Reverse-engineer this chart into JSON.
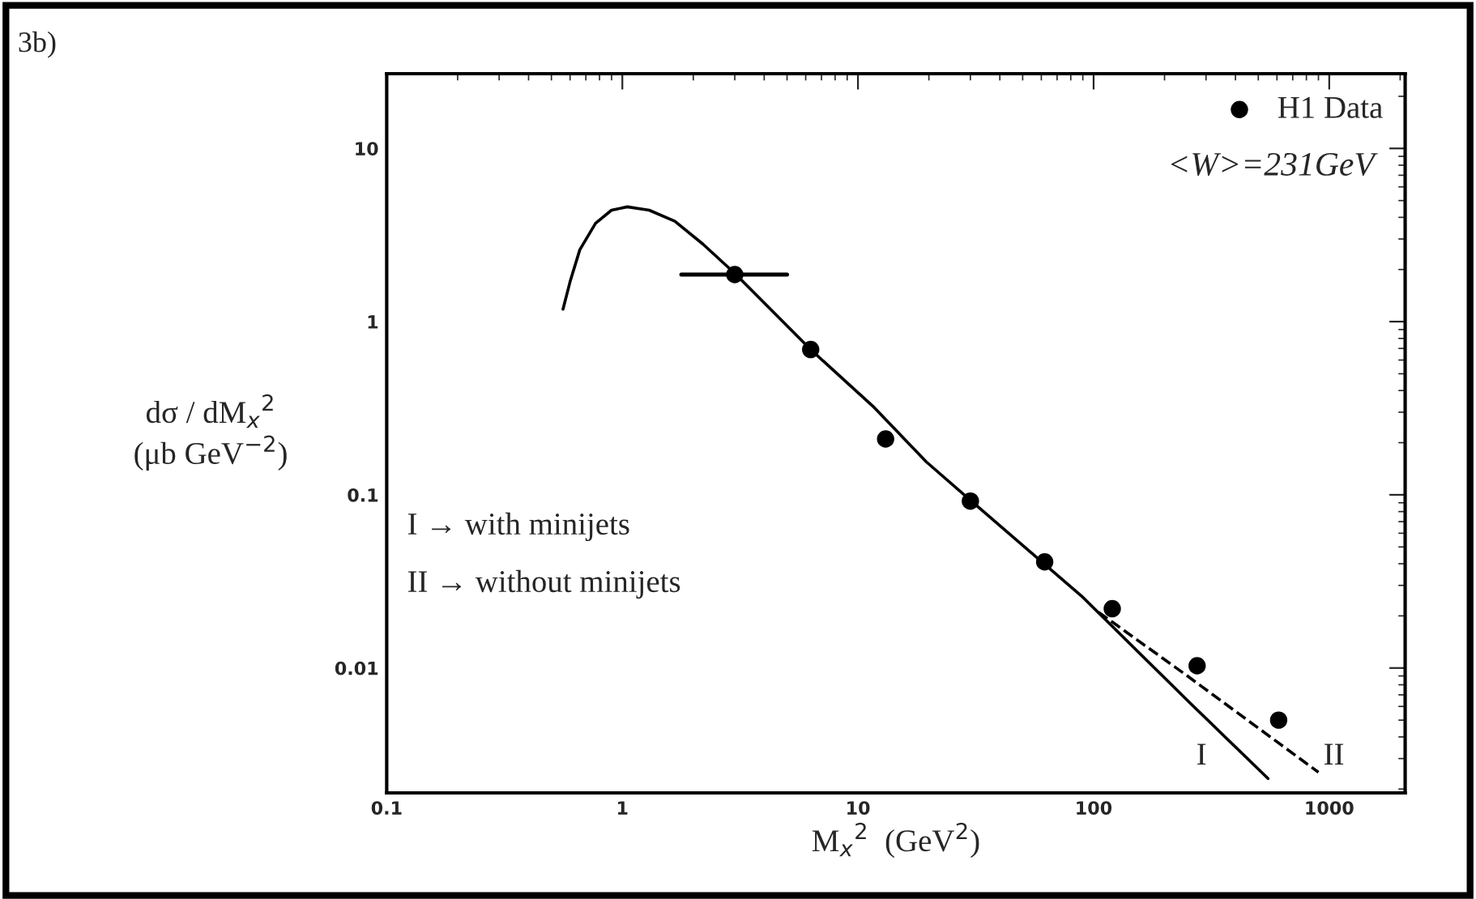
{
  "chart_data": {
    "type": "scatter",
    "title": "3b)",
    "xlabel": "M$_{x}$$^{2}$  (GeV$^{2}$)",
    "ylabel": "dσ / dM$_{x}$$^{2}$\n(μb GeV$^{−2}$)",
    "log": "xy",
    "xlim": [
      0.1,
      2100
    ],
    "ylim": [
      0.0019,
      27
    ],
    "xticks": [
      0.1,
      1,
      10,
      100,
      1000
    ],
    "yticks": [
      0.01,
      0.1,
      1,
      10
    ],
    "grid": false,
    "legend": "top right",
    "series": [
      {
        "type": "line",
        "color": "#000000",
        "line_style": "solid",
        "marker": "none",
        "x": [
          0.56,
          0.6,
          0.66,
          0.77,
          0.9,
          1.05,
          1.3,
          1.67,
          2.2,
          3.0,
          6.3,
          11.7,
          19.5,
          30,
          89,
          250,
          550
        ],
        "values": [
          1.18,
          1.7,
          2.6,
          3.7,
          4.4,
          4.6,
          4.4,
          3.8,
          2.8,
          1.9,
          0.69,
          0.32,
          0.155,
          0.093,
          0.026,
          0.0065,
          0.0023
        ]
      },
      {
        "type": "line",
        "color": "#000000",
        "line_style": "dashed",
        "marker": "none",
        "x": [
          105,
          250,
          900
        ],
        "values": [
          0.021,
          0.009,
          0.0025
        ]
      },
      {
        "name": "H1 Data",
        "color": "#000000",
        "marker": "circle",
        "x": [
          3.0,
          6.3,
          13.1,
          30,
          62,
          120,
          275,
          610
        ],
        "values": [
          1.87,
          0.69,
          0.21,
          0.092,
          0.041,
          0.022,
          0.0103,
          0.005
        ],
        "xerrors": [
          [
            1.78,
            5.0
          ],
          null,
          null,
          null,
          null,
          null,
          null,
          null
        ]
      }
    ],
    "annotations": [
      "<W>=231GeV",
      "I → with minijets",
      "II → without minijets",
      "I",
      "II"
    ]
  }
}
